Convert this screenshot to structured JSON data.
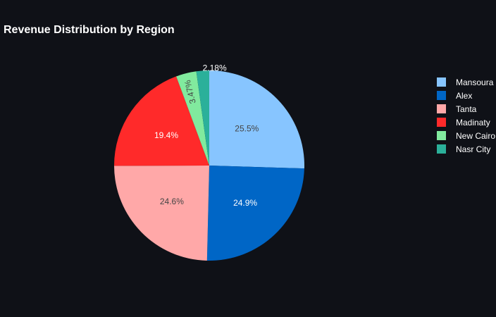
{
  "chart_data": {
    "type": "pie",
    "title": "Revenue Distribution by Region",
    "labels": [
      "Mansoura",
      "Alex",
      "Tanta",
      "Madinaty",
      "New Cairo",
      "Nasr City"
    ],
    "values": [
      25.5,
      24.9,
      24.6,
      19.4,
      3.47,
      2.18
    ],
    "value_labels": [
      "25.5%",
      "24.9%",
      "24.6%",
      "19.4%",
      "3.47%",
      "2.18%"
    ],
    "colors": [
      "#87c5ff",
      "#0066c6",
      "#ffa8a8",
      "#ff2a2a",
      "#81ea9e",
      "#2bb09a"
    ],
    "label_colors": [
      "#444444",
      "#ffffff",
      "#444444",
      "#ffffff",
      "#444444",
      "#ffffff"
    ],
    "legend_placement": "right",
    "direction": "clockwise",
    "start": "12 o'clock"
  }
}
